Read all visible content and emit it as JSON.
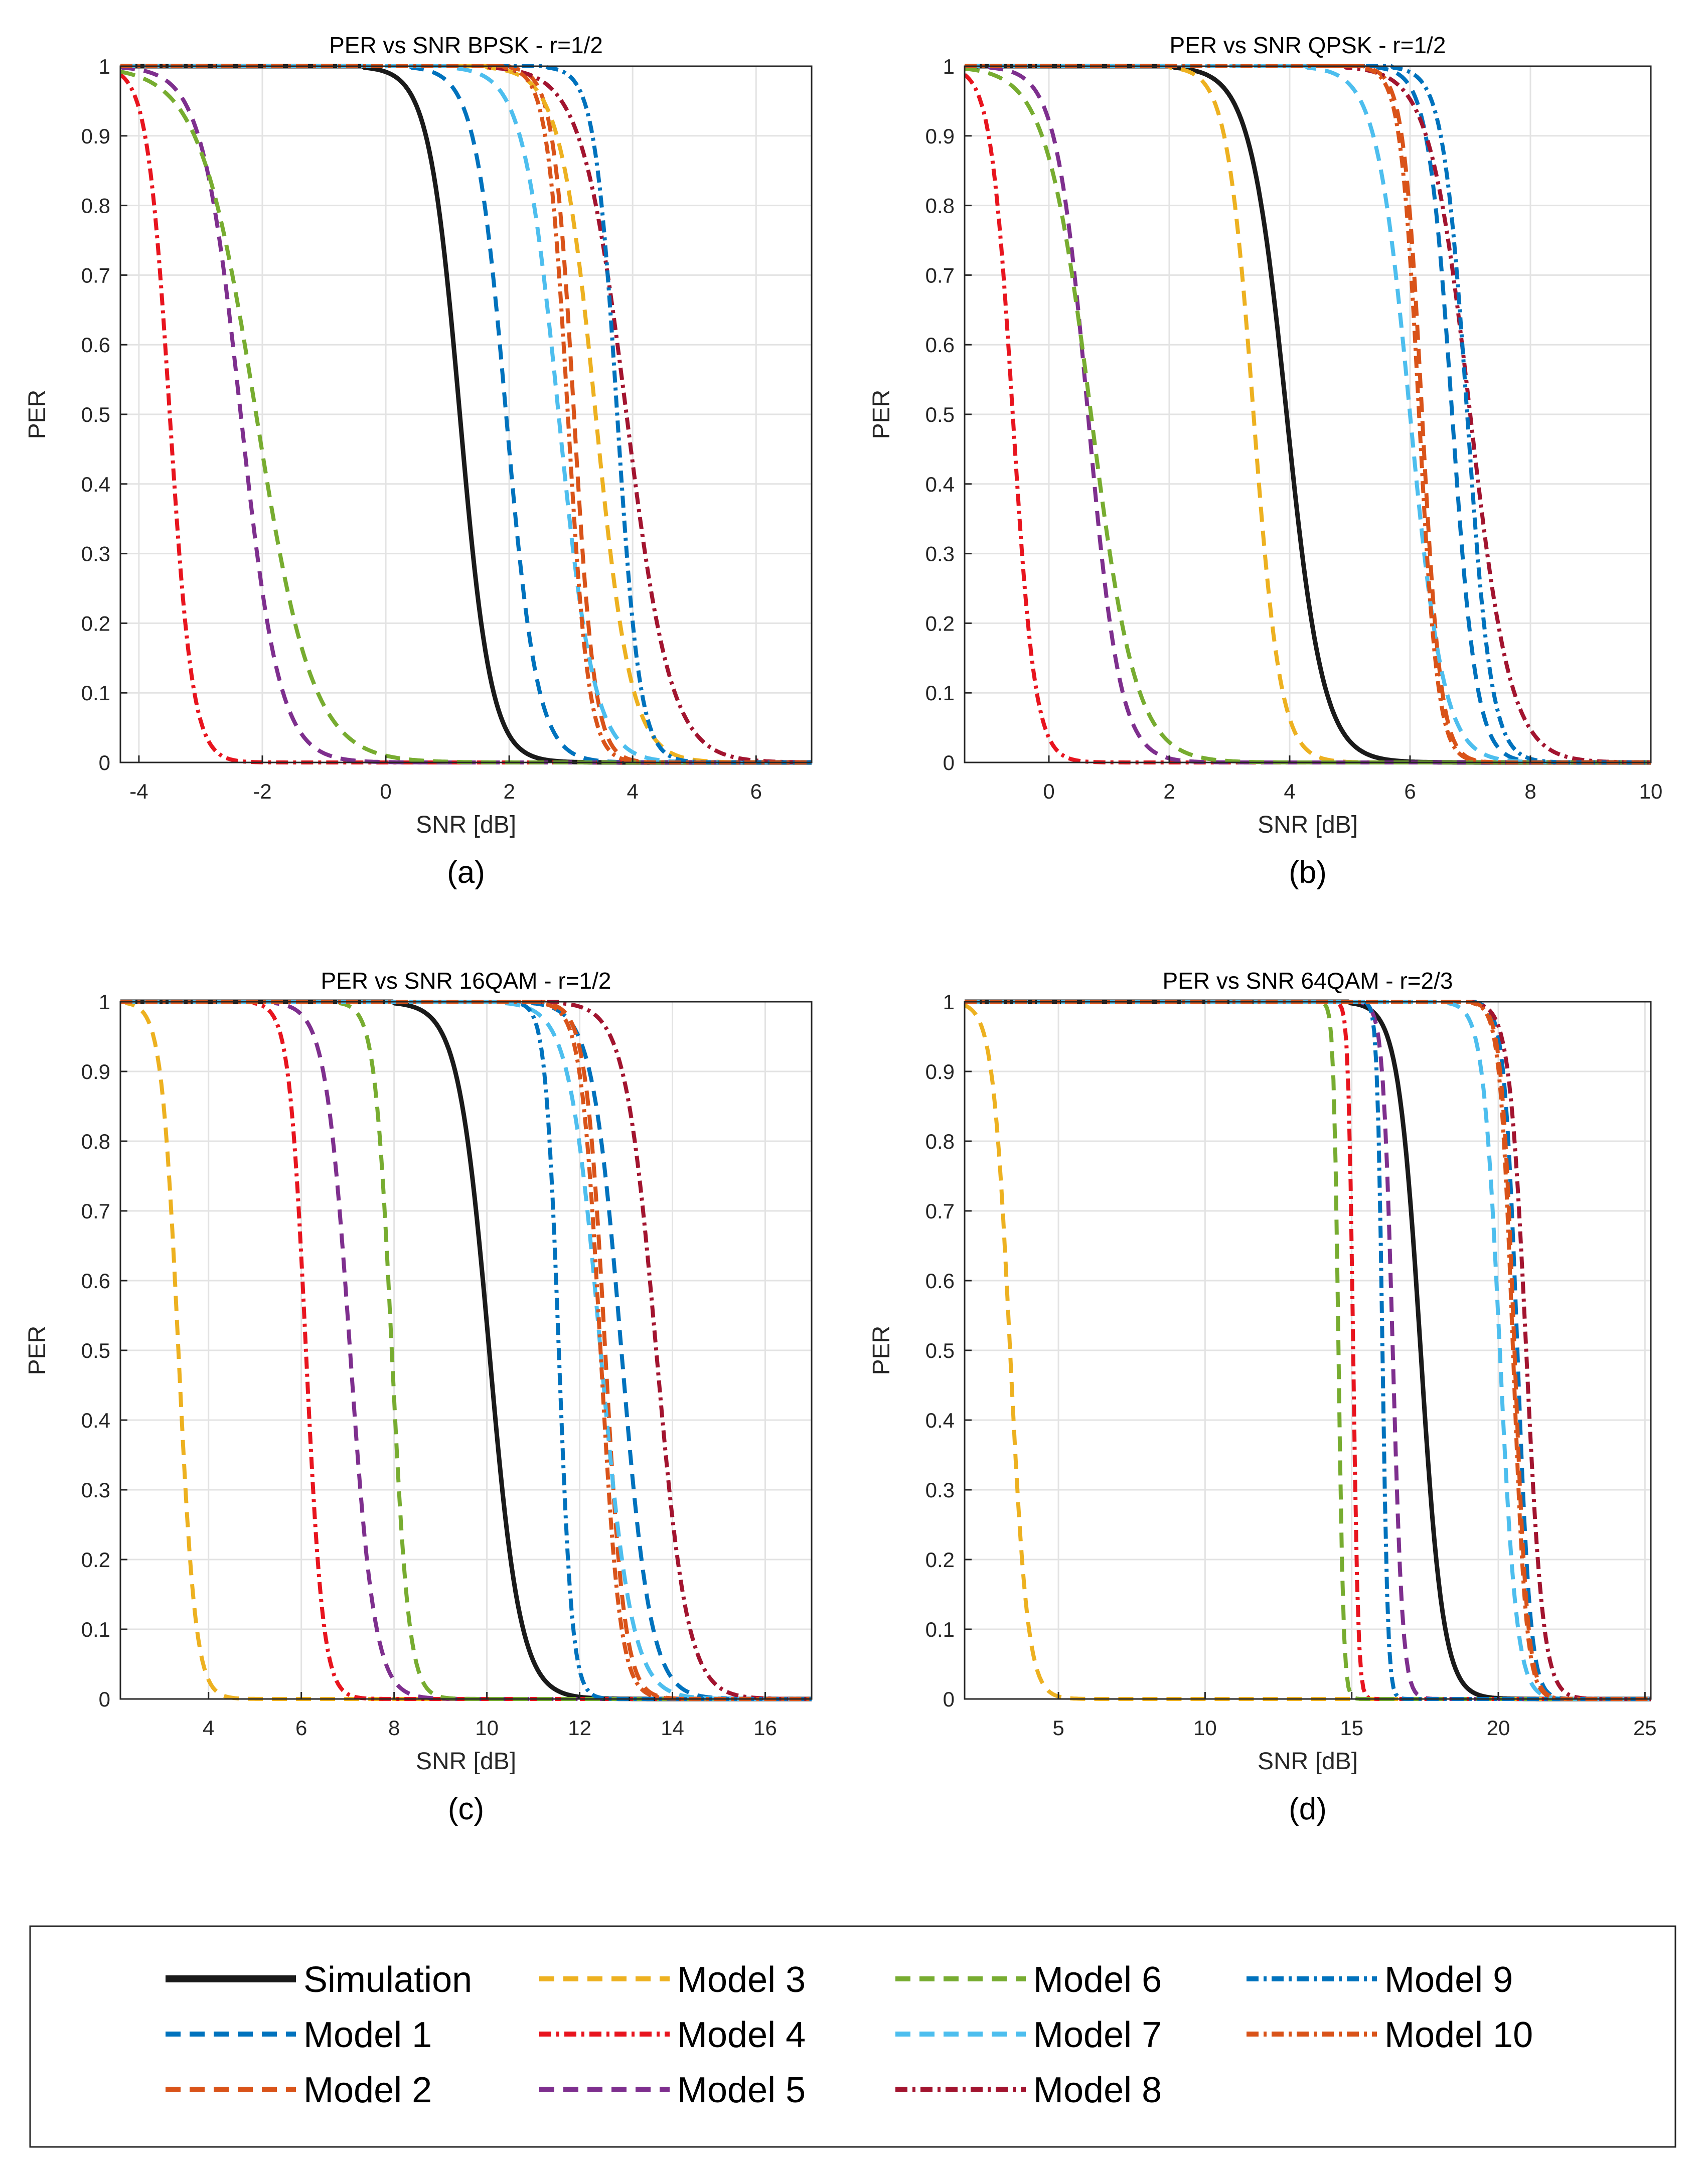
{
  "series_styles": [
    {
      "key": "sim",
      "name": "Simulation",
      "color": "#1a1a1a",
      "dash": "",
      "width": 9
    },
    {
      "key": "m1",
      "name": "Model  1",
      "color": "#0072BD",
      "dash": "30,18",
      "width": 8
    },
    {
      "key": "m2",
      "name": "Model  2",
      "color": "#D95319",
      "dash": "30,18",
      "width": 8
    },
    {
      "key": "m3",
      "name": "Model  3",
      "color": "#EDB120",
      "dash": "30,18",
      "width": 8
    },
    {
      "key": "m4",
      "name": "Model  4",
      "color": "#E8141E",
      "dash": "24,10,6,10",
      "width": 8
    },
    {
      "key": "m5",
      "name": "Model  5",
      "color": "#7E2F8E",
      "dash": "30,18",
      "width": 8
    },
    {
      "key": "m6",
      "name": "Model  6",
      "color": "#77AC30",
      "dash": "30,18",
      "width": 8
    },
    {
      "key": "m7",
      "name": "Model  7",
      "color": "#4DBEEE",
      "dash": "30,18",
      "width": 8
    },
    {
      "key": "m8",
      "name": "Model  8",
      "color": "#A2142F",
      "dash": "24,10,6,10",
      "width": 8
    },
    {
      "key": "m9",
      "name": "Model  9",
      "color": "#0072BD",
      "dash": "24,10,6,10",
      "width": 8
    },
    {
      "key": "m10",
      "name": "Model 10",
      "color": "#D95319",
      "dash": "24,10,6,10",
      "width": 8
    }
  ],
  "legend_order": [
    "sim",
    "m1",
    "m2",
    "m3",
    "m4",
    "m5",
    "m6",
    "m7",
    "m8",
    "m9",
    "m10"
  ],
  "chart_data": [
    {
      "id": "a",
      "type": "line",
      "title": "PER vs SNR    BPSK - r=1/2",
      "caption": "(a)",
      "xlabel": "SNR [dB]",
      "ylabel": "PER",
      "xlim": [
        -4.3,
        6.9
      ],
      "ylim": [
        0,
        1
      ],
      "xticks": [
        -4,
        -2,
        0,
        2,
        4,
        6
      ],
      "xtick_labels": [
        "-4",
        "-2",
        "0",
        "2",
        "4",
        "6"
      ],
      "yticks": [
        0,
        0.1,
        0.2,
        0.3,
        0.4,
        0.5,
        0.6,
        0.7,
        0.8,
        0.9,
        1
      ],
      "ytick_labels": [
        "0",
        "0.1",
        "0.2",
        "0.3",
        "0.4",
        "0.5",
        "0.6",
        "0.7",
        "0.8",
        "0.9",
        "1"
      ],
      "series": [
        {
          "key": "sim",
          "x50": 1.2,
          "slope": 4.0
        },
        {
          "key": "m1",
          "x50": 1.95,
          "slope": 4.0
        },
        {
          "key": "m2",
          "x50": 3.05,
          "slope": 6.0
        },
        {
          "key": "m3",
          "x50": 3.4,
          "slope": 3.5
        },
        {
          "key": "m4",
          "x50": -3.5,
          "slope": 5.5
        },
        {
          "key": "m5",
          "x50": -2.35,
          "slope": 3.2
        },
        {
          "key": "m6",
          "x50": -2.1,
          "slope": 2.2
        },
        {
          "key": "m7",
          "x50": 2.8,
          "slope": 3.5
        },
        {
          "key": "m8",
          "x50": 3.9,
          "slope": 2.8
        },
        {
          "key": "m9",
          "x50": 3.75,
          "slope": 5.5
        },
        {
          "key": "m10",
          "x50": 2.95,
          "slope": 6.0
        }
      ]
    },
    {
      "id": "b",
      "type": "line",
      "title": "PER vs SNR    QPSK - r=1/2",
      "caption": "(b)",
      "xlabel": "SNR [dB]",
      "ylabel": "PER",
      "xlim": [
        -1.4,
        10.0
      ],
      "ylim": [
        0,
        1
      ],
      "xticks": [
        0,
        2,
        4,
        6,
        8,
        10
      ],
      "xtick_labels": [
        "0",
        "2",
        "4",
        "6",
        "8",
        "10"
      ],
      "yticks": [
        0,
        0.1,
        0.2,
        0.3,
        0.4,
        0.5,
        0.6,
        0.7,
        0.8,
        0.9,
        1
      ],
      "ytick_labels": [
        "0",
        "0.1",
        "0.2",
        "0.3",
        "0.4",
        "0.5",
        "0.6",
        "0.7",
        "0.8",
        "0.9",
        "1"
      ],
      "series": [
        {
          "key": "sim",
          "x50": 3.95,
          "slope": 3.3
        },
        {
          "key": "m1",
          "x50": 6.7,
          "slope": 5.0
        },
        {
          "key": "m2",
          "x50": 6.2,
          "slope": 6.5
        },
        {
          "key": "m3",
          "x50": 3.4,
          "slope": 4.5
        },
        {
          "key": "m4",
          "x50": -0.6,
          "slope": 5.5
        },
        {
          "key": "m5",
          "x50": 0.65,
          "slope": 3.8
        },
        {
          "key": "m6",
          "x50": 0.7,
          "slope": 2.7
        },
        {
          "key": "m7",
          "x50": 6.0,
          "slope": 3.6
        },
        {
          "key": "m8",
          "x50": 7.0,
          "slope": 3.0
        },
        {
          "key": "m9",
          "x50": 6.95,
          "slope": 5.0
        },
        {
          "key": "m10",
          "x50": 6.15,
          "slope": 6.5
        }
      ]
    },
    {
      "id": "c",
      "type": "line",
      "title": "PER vs SNR    16QAM - r=1/2",
      "caption": "(c)",
      "xlabel": "SNR [dB]",
      "ylabel": "PER",
      "xlim": [
        2.1,
        17.0
      ],
      "ylim": [
        0,
        1
      ],
      "xticks": [
        4,
        6,
        8,
        10,
        12,
        14,
        16
      ],
      "xtick_labels": [
        "4",
        "6",
        "8",
        "10",
        "12",
        "14",
        "16"
      ],
      "yticks": [
        0,
        0.1,
        0.2,
        0.3,
        0.4,
        0.5,
        0.6,
        0.7,
        0.8,
        0.9,
        1
      ],
      "ytick_labels": [
        "0",
        "0.1",
        "0.2",
        "0.3",
        "0.4",
        "0.5",
        "0.6",
        "0.7",
        "0.8",
        "0.9",
        "1"
      ],
      "series": [
        {
          "key": "sim",
          "x50": 10.05,
          "slope": 3.0
        },
        {
          "key": "m1",
          "x50": 12.9,
          "slope": 3.2
        },
        {
          "key": "m2",
          "x50": 12.55,
          "slope": 4.8
        },
        {
          "key": "m3",
          "x50": 3.35,
          "slope": 5.5
        },
        {
          "key": "m4",
          "x50": 6.1,
          "slope": 5.5
        },
        {
          "key": "m5",
          "x50": 7.05,
          "slope": 3.8
        },
        {
          "key": "m6",
          "x50": 7.95,
          "slope": 5.5
        },
        {
          "key": "m7",
          "x50": 12.45,
          "slope": 3.0
        },
        {
          "key": "m8",
          "x50": 13.65,
          "slope": 3.0
        },
        {
          "key": "m9",
          "x50": 11.55,
          "slope": 7.0
        },
        {
          "key": "m10",
          "x50": 12.45,
          "slope": 4.8
        }
      ]
    },
    {
      "id": "d",
      "type": "line",
      "title": "PER vs SNR    64QAM - r=2/3",
      "caption": "(d)",
      "xlabel": "SNR [dB]",
      "ylabel": "PER",
      "xlim": [
        1.8,
        25.2
      ],
      "ylim": [
        0,
        1
      ],
      "xticks": [
        5,
        10,
        15,
        20,
        25
      ],
      "xtick_labels": [
        "5",
        "10",
        "15",
        "20",
        "25"
      ],
      "yticks": [
        0,
        0.1,
        0.2,
        0.3,
        0.4,
        0.5,
        0.6,
        0.7,
        0.8,
        0.9,
        1
      ],
      "ytick_labels": [
        "0",
        "0.1",
        "0.2",
        "0.3",
        "0.4",
        "0.5",
        "0.6",
        "0.7",
        "0.8",
        "0.9",
        "1"
      ],
      "series": [
        {
          "key": "sim",
          "x50": 17.35,
          "slope": 2.6
        },
        {
          "key": "m1",
          "x50": 20.65,
          "slope": 4.5
        },
        {
          "key": "m2",
          "x50": 20.55,
          "slope": 4.5
        },
        {
          "key": "m3",
          "x50": 3.35,
          "slope": 3.4
        },
        {
          "key": "m4",
          "x50": 15.05,
          "slope": 12.0
        },
        {
          "key": "m5",
          "x50": 16.4,
          "slope": 6.0
        },
        {
          "key": "m6",
          "x50": 14.55,
          "slope": 12.0
        },
        {
          "key": "m7",
          "x50": 20.05,
          "slope": 3.5
        },
        {
          "key": "m8",
          "x50": 20.95,
          "slope": 3.5
        },
        {
          "key": "m9",
          "x50": 16.05,
          "slope": 11.0
        },
        {
          "key": "m10",
          "x50": 20.5,
          "slope": 4.5
        }
      ]
    }
  ]
}
